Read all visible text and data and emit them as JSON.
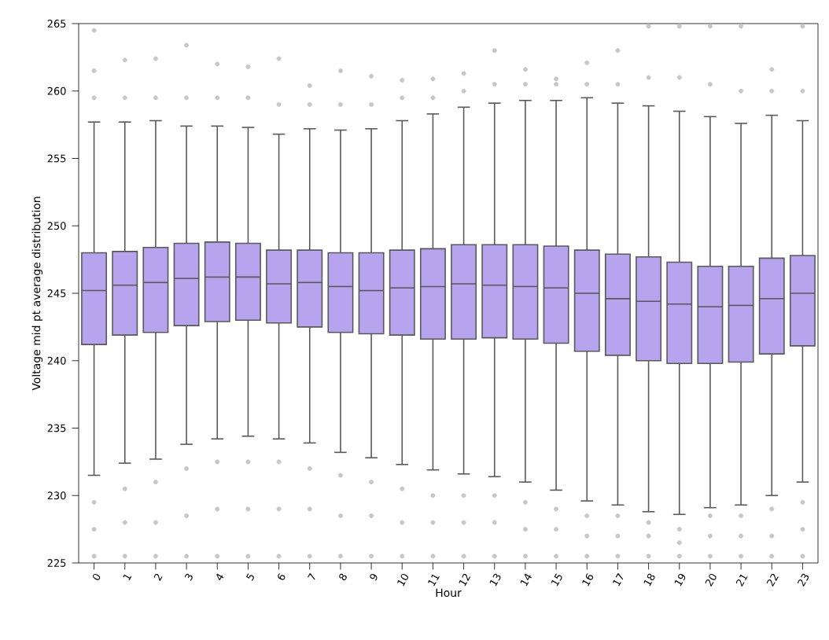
{
  "chart_data": {
    "type": "box",
    "xlabel": "Hour",
    "ylabel": "Voltage mid pt average distribution",
    "categories": [
      "0",
      "1",
      "2",
      "3",
      "4",
      "5",
      "6",
      "7",
      "8",
      "9",
      "10",
      "11",
      "12",
      "13",
      "14",
      "15",
      "16",
      "17",
      "18",
      "19",
      "20",
      "21",
      "22",
      "23"
    ],
    "ylim": [
      225,
      265
    ],
    "yticks": [
      225,
      230,
      235,
      240,
      245,
      250,
      255,
      260,
      265
    ],
    "grid": false,
    "series": [
      {
        "color": "#b7a4ee",
        "boxes": [
          {
            "low": 231.5,
            "q1": 241.2,
            "median": 245.2,
            "q3": 248.0,
            "high": 257.7,
            "outliers": [
              225.5,
              227.5,
              229.5,
              259.5,
              261.5,
              264.5
            ]
          },
          {
            "low": 232.4,
            "q1": 241.9,
            "median": 245.6,
            "q3": 248.1,
            "high": 257.7,
            "outliers": [
              225.5,
              228,
              230.5,
              259.5,
              262.3
            ]
          },
          {
            "low": 232.7,
            "q1": 242.1,
            "median": 245.8,
            "q3": 248.4,
            "high": 257.8,
            "outliers": [
              225.5,
              228,
              231,
              259.5,
              262.4
            ]
          },
          {
            "low": 233.8,
            "q1": 242.6,
            "median": 246.1,
            "q3": 248.7,
            "high": 257.4,
            "outliers": [
              225.5,
              228.5,
              232,
              259.5,
              263.4
            ]
          },
          {
            "low": 234.2,
            "q1": 242.9,
            "median": 246.2,
            "q3": 248.8,
            "high": 257.4,
            "outliers": [
              225.5,
              229,
              232.5,
              259.5,
              262.0
            ]
          },
          {
            "low": 234.4,
            "q1": 243.0,
            "median": 246.2,
            "q3": 248.7,
            "high": 257.3,
            "outliers": [
              225.5,
              229,
              232.5,
              259.5,
              261.8
            ]
          },
          {
            "low": 234.2,
            "q1": 242.8,
            "median": 245.7,
            "q3": 248.2,
            "high": 256.8,
            "outliers": [
              225.5,
              229,
              232.5,
              259,
              262.4
            ]
          },
          {
            "low": 233.9,
            "q1": 242.5,
            "median": 245.8,
            "q3": 248.2,
            "high": 257.2,
            "outliers": [
              225.5,
              229,
              232,
              259,
              260.4
            ]
          },
          {
            "low": 233.2,
            "q1": 242.1,
            "median": 245.5,
            "q3": 248.0,
            "high": 257.1,
            "outliers": [
              225.5,
              228.5,
              231.5,
              259,
              261.5
            ]
          },
          {
            "low": 232.8,
            "q1": 242.0,
            "median": 245.2,
            "q3": 248.0,
            "high": 257.2,
            "outliers": [
              225.5,
              228.5,
              231,
              259,
              261.1
            ]
          },
          {
            "low": 232.3,
            "q1": 241.9,
            "median": 245.4,
            "q3": 248.2,
            "high": 257.8,
            "outliers": [
              225.5,
              228,
              230.5,
              259.5,
              260.8
            ]
          },
          {
            "low": 231.9,
            "q1": 241.6,
            "median": 245.5,
            "q3": 248.3,
            "high": 258.3,
            "outliers": [
              225.5,
              228,
              230,
              259.5,
              260.9
            ]
          },
          {
            "low": 231.6,
            "q1": 241.6,
            "median": 245.7,
            "q3": 248.6,
            "high": 258.8,
            "outliers": [
              225.5,
              228,
              230,
              260,
              261.3
            ]
          },
          {
            "low": 231.4,
            "q1": 241.7,
            "median": 245.6,
            "q3": 248.6,
            "high": 259.1,
            "outliers": [
              225.5,
              228,
              230,
              260.5,
              263.0
            ]
          },
          {
            "low": 231.0,
            "q1": 241.6,
            "median": 245.5,
            "q3": 248.6,
            "high": 259.3,
            "outliers": [
              225.5,
              227.5,
              229.5,
              260.5,
              261.6
            ]
          },
          {
            "low": 230.4,
            "q1": 241.3,
            "median": 245.4,
            "q3": 248.5,
            "high": 259.3,
            "outliers": [
              225.5,
              227.5,
              229,
              260.5,
              260.9
            ]
          },
          {
            "low": 229.6,
            "q1": 240.7,
            "median": 245.0,
            "q3": 248.2,
            "high": 259.5,
            "outliers": [
              225.5,
              227,
              228.5,
              260.5,
              262.1
            ]
          },
          {
            "low": 229.3,
            "q1": 240.4,
            "median": 244.6,
            "q3": 247.9,
            "high": 259.1,
            "outliers": [
              225.5,
              227,
              228.5,
              260.5,
              263.0
            ]
          },
          {
            "low": 228.8,
            "q1": 240.0,
            "median": 244.4,
            "q3": 247.7,
            "high": 258.9,
            "outliers": [
              225.5,
              227,
              228,
              261,
              264.8
            ]
          },
          {
            "low": 228.6,
            "q1": 239.8,
            "median": 244.2,
            "q3": 247.3,
            "high": 258.5,
            "outliers": [
              225.5,
              226.5,
              227.5,
              261,
              264.8
            ]
          },
          {
            "low": 229.1,
            "q1": 239.8,
            "median": 244.0,
            "q3": 247.0,
            "high": 258.1,
            "outliers": [
              225.5,
              227,
              228.5,
              260.5,
              264.8
            ]
          },
          {
            "low": 229.3,
            "q1": 239.9,
            "median": 244.1,
            "q3": 247.0,
            "high": 257.6,
            "outliers": [
              225.5,
              227,
              228.5,
              260,
              264.8
            ]
          },
          {
            "low": 230.0,
            "q1": 240.5,
            "median": 244.6,
            "q3": 247.6,
            "high": 258.2,
            "outliers": [
              225.5,
              227,
              229,
              260,
              261.6
            ]
          },
          {
            "low": 231.0,
            "q1": 241.1,
            "median": 245.0,
            "q3": 247.8,
            "high": 257.8,
            "outliers": [
              225.5,
              227.5,
              229.5,
              260,
              264.8
            ]
          }
        ]
      }
    ]
  }
}
